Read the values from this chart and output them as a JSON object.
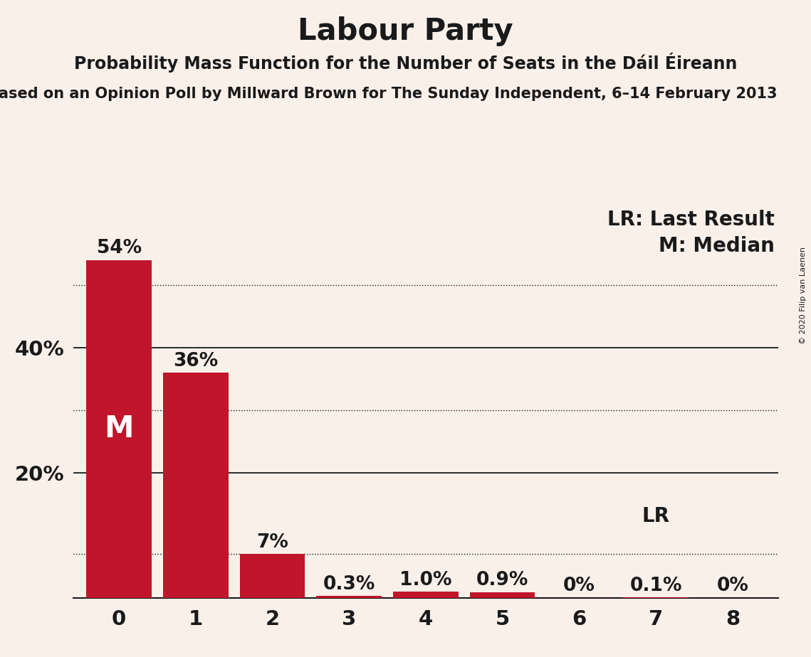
{
  "title": "Labour Party",
  "subtitle": "Probability Mass Function for the Number of Seats in the Dáil Éireann",
  "subtitle2": "ased on an Opinion Poll by Millward Brown for The Sunday Independent, 6–14 February 2013",
  "copyright": "© 2020 Filip van Laenen",
  "categories": [
    0,
    1,
    2,
    3,
    4,
    5,
    6,
    7,
    8
  ],
  "values": [
    0.54,
    0.36,
    0.07,
    0.003,
    0.01,
    0.009,
    0.0,
    0.001,
    0.0
  ],
  "bar_color": "#C0152A",
  "background_color": "#FAF0EA",
  "text_color": "#1a1a1a",
  "median_bar": 0,
  "lr_bar": 7,
  "labels": [
    "54%",
    "36%",
    "7%",
    "0.3%",
    "1.0%",
    "0.9%",
    "0%",
    "0.1%",
    "0%"
  ],
  "dotted_lines": [
    0.5,
    0.3,
    0.07
  ],
  "solid_lines": [
    0.4,
    0.2
  ],
  "title_fontsize": 30,
  "subtitle_fontsize": 17,
  "subtitle2_fontsize": 15,
  "label_fontsize": 19,
  "axis_fontsize": 21,
  "annotation_fontsize": 20,
  "m_fontsize": 30,
  "ylim_max": 0.63
}
